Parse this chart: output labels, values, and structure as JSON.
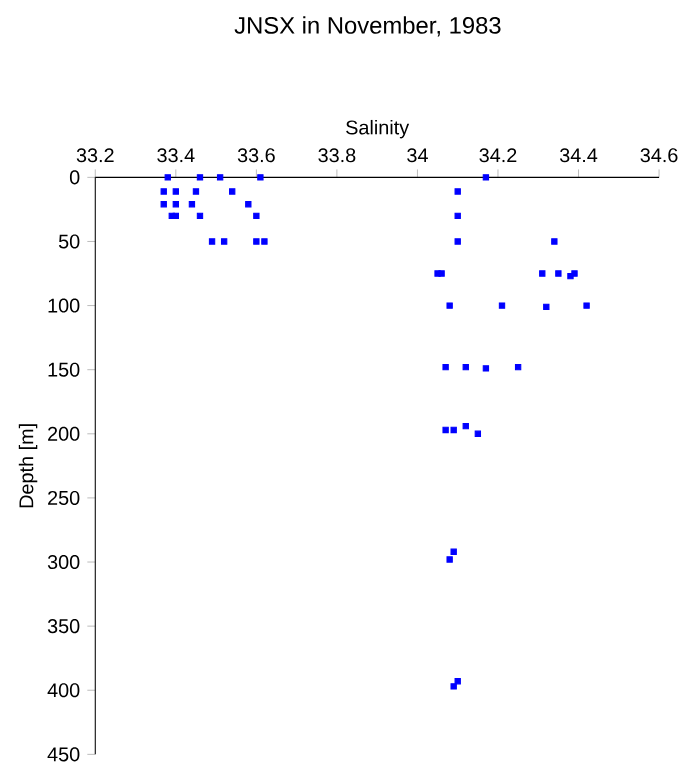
{
  "chart_data": {
    "type": "scatter",
    "title": "JNSX in November, 1983",
    "xlabel": "Salinity",
    "ylabel": "Depth [m]",
    "xlim": [
      33.2,
      34.6
    ],
    "ylim": [
      450,
      0
    ],
    "xticks": [
      33.2,
      33.4,
      33.6,
      33.8,
      34,
      34.2,
      34.4,
      34.6
    ],
    "yticks": [
      0,
      50,
      100,
      150,
      200,
      250,
      300,
      350,
      400,
      450
    ],
    "marker": "square",
    "color": "#0000ff",
    "x": [
      33.38,
      33.46,
      33.51,
      33.61,
      33.37,
      33.4,
      33.45,
      33.54,
      33.37,
      33.4,
      33.44,
      33.58,
      33.39,
      33.4,
      33.46,
      33.6,
      33.49,
      33.52,
      33.6,
      33.62,
      34.17,
      34.1,
      34.1,
      34.1,
      34.34,
      34.05,
      34.06,
      34.31,
      34.35,
      34.38,
      34.39,
      34.08,
      34.21,
      34.32,
      34.42,
      34.07,
      34.12,
      34.17,
      34.25,
      34.07,
      34.09,
      34.12,
      34.15,
      34.08,
      34.09,
      34.09,
      34.1
    ],
    "values": [
      0,
      0,
      0,
      0,
      11,
      11,
      11,
      11,
      21,
      21,
      21,
      21,
      30,
      30,
      30,
      30,
      50,
      50,
      50,
      50,
      0,
      11,
      30,
      50,
      50,
      75,
      75,
      75,
      75,
      77,
      75,
      100,
      100,
      101,
      100,
      148,
      148,
      149,
      148,
      197,
      197,
      194,
      200,
      298,
      292,
      397,
      393
    ]
  }
}
